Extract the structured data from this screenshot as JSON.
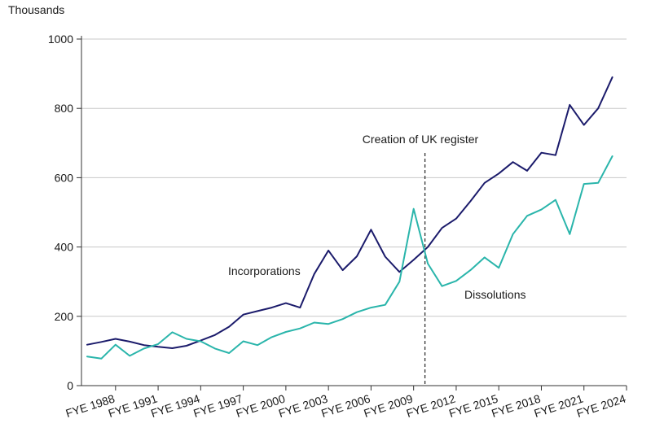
{
  "chart_data": {
    "type": "line",
    "title": "",
    "ylabel": "Thousands",
    "xlabel": "",
    "ylim": [
      0,
      1000
    ],
    "yticks": [
      0,
      200,
      400,
      600,
      800,
      1000
    ],
    "grid": "horizontal",
    "years": [
      1986,
      1987,
      1988,
      1989,
      1990,
      1991,
      1992,
      1993,
      1994,
      1995,
      1996,
      1997,
      1998,
      1999,
      2000,
      2001,
      2002,
      2003,
      2004,
      2005,
      2006,
      2007,
      2008,
      2009,
      2010,
      2011,
      2012,
      2013,
      2014,
      2015,
      2016,
      2017,
      2018,
      2019,
      2020,
      2021,
      2022,
      2023,
      2024
    ],
    "x_tick_labels": [
      {
        "year": 1988,
        "label": "FYE 1988"
      },
      {
        "year": 1991,
        "label": "FYE 1991"
      },
      {
        "year": 1994,
        "label": "FYE 1994"
      },
      {
        "year": 1997,
        "label": "FYE 1997"
      },
      {
        "year": 2000,
        "label": "FYE 2000"
      },
      {
        "year": 2003,
        "label": "FYE 2003"
      },
      {
        "year": 2006,
        "label": "FYE 2006"
      },
      {
        "year": 2009,
        "label": "FYE 2009"
      },
      {
        "year": 2012,
        "label": "FYE 2012"
      },
      {
        "year": 2015,
        "label": "FYE 2015"
      },
      {
        "year": 2018,
        "label": "FYE 2018"
      },
      {
        "year": 2021,
        "label": "FYE 2021"
      },
      {
        "year": 2024,
        "label": "FYE 2024"
      }
    ],
    "series": [
      {
        "name": "Incorporations",
        "label": "Incorporations",
        "color": "#1b1b6b",
        "values": [
          118,
          126,
          135,
          127,
          117,
          112,
          108,
          115,
          130,
          146,
          170,
          205,
          215,
          225,
          238,
          225,
          322,
          390,
          333,
          373,
          450,
          372,
          328,
          363,
          400,
          455,
          482,
          532,
          585,
          612,
          645,
          620,
          672,
          665,
          810,
          752,
          800,
          890,
          null
        ]
      },
      {
        "name": "Dissolutions",
        "label": "Dissolutions",
        "color": "#2ab5ab",
        "values": [
          84,
          78,
          118,
          86,
          107,
          120,
          154,
          135,
          128,
          107,
          94,
          128,
          117,
          140,
          155,
          165,
          182,
          178,
          192,
          212,
          225,
          233,
          300,
          510,
          352,
          287,
          302,
          333,
          370,
          340,
          437,
          490,
          508,
          536,
          437,
          582,
          585,
          662,
          null
        ]
      }
    ],
    "annotations": [
      {
        "text": "Creation of UK register",
        "x_year": 2009.8,
        "style": "dashed-vertical-line"
      }
    ]
  }
}
